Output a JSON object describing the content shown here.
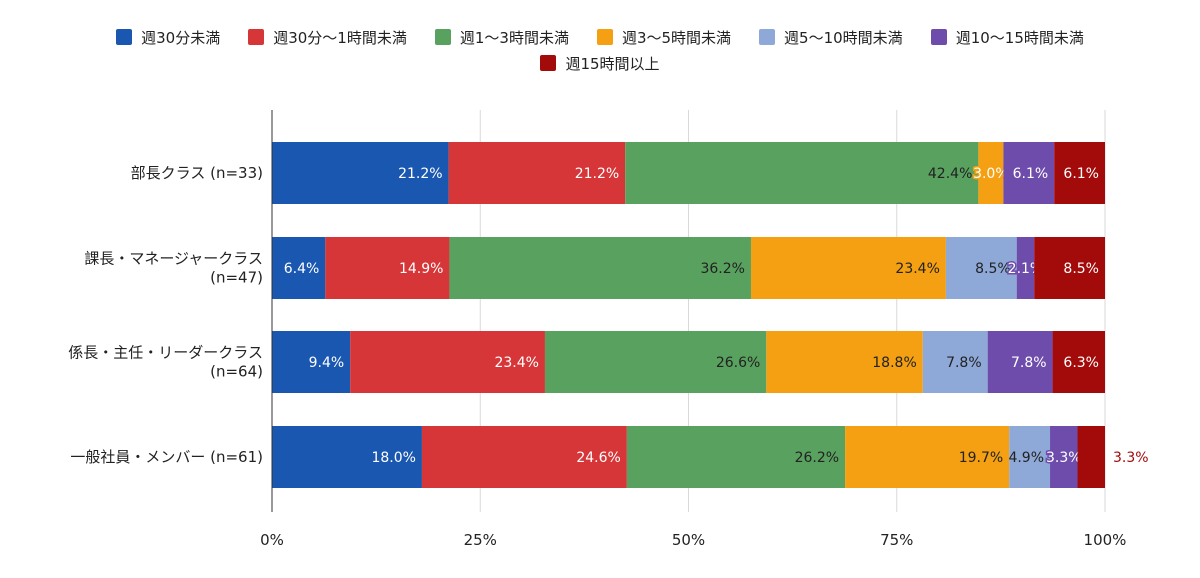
{
  "chart_data": {
    "type": "bar",
    "orientation": "horizontal",
    "stacked": "percent",
    "categories": [
      [
        "部長クラス (n=33)"
      ],
      [
        "課長・マネージャークラス",
        "(n=47)"
      ],
      [
        "係長・主任・リーダークラス",
        "(n=64)"
      ],
      [
        "一般社員・メンバー (n=61)"
      ]
    ],
    "series": [
      {
        "name": "週30分未満",
        "color": "#1a57b0",
        "values": [
          21.2,
          6.4,
          9.4,
          18.0
        ]
      },
      {
        "name": "週30分〜1時間未満",
        "color": "#d63638",
        "values": [
          21.2,
          14.9,
          23.4,
          24.6
        ]
      },
      {
        "name": "週1〜3時間未満",
        "color": "#59a15f",
        "values": [
          42.4,
          36.2,
          26.6,
          26.2
        ]
      },
      {
        "name": "週3〜5時間未満",
        "color": "#f4a012",
        "values": [
          3.0,
          23.4,
          18.8,
          19.7
        ]
      },
      {
        "name": "週5〜10時間未満",
        "color": "#8ea9d8",
        "values": [
          0,
          8.5,
          7.8,
          4.9
        ]
      },
      {
        "name": "週10〜15時間未満",
        "color": "#6e4cab",
        "values": [
          6.1,
          2.1,
          7.8,
          3.3
        ]
      },
      {
        "name": "週15時間以上",
        "color": "#a30b0b",
        "values": [
          6.1,
          8.5,
          6.3,
          3.3
        ]
      }
    ],
    "x_ticks": [
      "0%",
      "25%",
      "50%",
      "75%",
      "100%"
    ],
    "xlim": [
      0,
      100
    ],
    "grid": true,
    "legend_position": "top"
  }
}
